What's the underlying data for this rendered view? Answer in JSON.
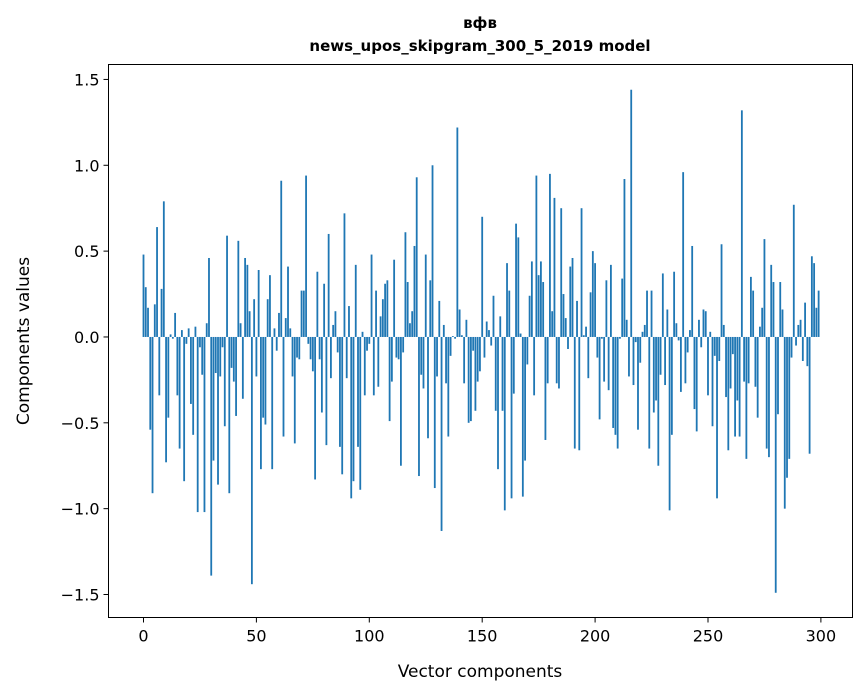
{
  "chart_data": {
    "type": "bar",
    "title": "вфв",
    "subtitle": "news_upos_skipgram_300_5_2019 model",
    "xlabel": "Vector components",
    "ylabel": "Components values",
    "xlim": [
      -15.5,
      314
    ],
    "ylim": [
      -1.634,
      1.587
    ],
    "xticks": [
      0,
      50,
      100,
      150,
      200,
      250,
      300
    ],
    "xtick_labels": [
      "0",
      "50",
      "100",
      "150",
      "200",
      "250",
      "300"
    ],
    "yticks": [
      -1.5,
      -1.0,
      -0.5,
      0.0,
      0.5,
      1.0,
      1.5
    ],
    "ytick_labels": [
      "−1.5",
      "−1.0",
      "−0.5",
      "0.0",
      "0.5",
      "1.0",
      "1.5"
    ],
    "grid": false,
    "bar_color": "#1f77b4",
    "values": [
      0.48,
      0.29,
      0.17,
      -0.54,
      -0.91,
      0.19,
      0.64,
      -0.34,
      0.28,
      0.79,
      -0.73,
      -0.47,
      0.015,
      -0.01,
      0.14,
      -0.34,
      -0.65,
      0.04,
      -0.84,
      -0.04,
      0.05,
      -0.39,
      -0.57,
      0.06,
      -1.02,
      -0.06,
      -0.22,
      -1.02,
      0.08,
      0.46,
      -1.39,
      -0.72,
      -0.21,
      -0.86,
      -0.23,
      -0.06,
      -0.52,
      0.59,
      -0.91,
      -0.18,
      -0.26,
      -0.46,
      0.56,
      0.08,
      -0.36,
      0.46,
      0.42,
      0.15,
      -1.44,
      0.22,
      -0.23,
      0.39,
      -0.77,
      -0.47,
      -0.51,
      0.22,
      0.36,
      -0.77,
      0.05,
      -0.08,
      0.14,
      0.91,
      -0.58,
      0.11,
      0.41,
      0.05,
      -0.23,
      -0.62,
      -0.12,
      -0.13,
      0.27,
      0.27,
      0.94,
      -0.04,
      -0.13,
      -0.2,
      -0.83,
      0.38,
      -0.13,
      -0.44,
      0.31,
      -0.63,
      0.6,
      -0.24,
      0.07,
      0.15,
      -0.09,
      -0.64,
      -0.8,
      0.72,
      -0.24,
      0.18,
      -0.94,
      -0.84,
      0.42,
      -0.64,
      -0.89,
      0.03,
      -0.34,
      -0.08,
      -0.04,
      0.48,
      -0.34,
      0.27,
      -0.29,
      0.12,
      0.22,
      0.31,
      0.33,
      -0.49,
      -0.26,
      0.45,
      -0.12,
      -0.13,
      -0.75,
      -0.09,
      0.61,
      0.32,
      0.08,
      0.15,
      0.53,
      0.93,
      -0.81,
      -0.22,
      -0.3,
      0.48,
      -0.59,
      0.33,
      1.0,
      -0.88,
      -0.23,
      0.21,
      -1.13,
      0.07,
      -0.27,
      -0.58,
      -0.11,
      0.005,
      -0.01,
      1.22,
      0.16,
      0.01,
      -0.27,
      0.1,
      -0.5,
      -0.49,
      -0.08,
      -0.43,
      -0.26,
      -0.2,
      0.7,
      -0.12,
      0.09,
      0.04,
      -0.05,
      0.24,
      -0.43,
      -0.77,
      0.12,
      -0.43,
      -1.01,
      0.43,
      0.27,
      -0.94,
      -0.33,
      0.66,
      0.58,
      0.02,
      -0.93,
      -0.72,
      -0.16,
      0.24,
      0.44,
      -0.34,
      0.94,
      0.36,
      0.44,
      0.32,
      -0.6,
      -0.27,
      0.95,
      0.15,
      0.81,
      -0.27,
      -0.3,
      0.75,
      0.25,
      0.11,
      -0.07,
      0.41,
      0.46,
      -0.65,
      0.21,
      -0.66,
      0.75,
      0.01,
      0.06,
      -0.24,
      0.26,
      0.5,
      0.43,
      -0.12,
      -0.48,
      -0.01,
      -0.26,
      0.33,
      -0.31,
      0.42,
      -0.53,
      -0.57,
      -0.65,
      -0.01,
      0.34,
      0.92,
      0.1,
      -0.23,
      1.44,
      -0.28,
      -0.03,
      -0.54,
      -0.15,
      0.03,
      0.07,
      0.27,
      -0.65,
      0.27,
      -0.44,
      -0.37,
      -0.75,
      -0.22,
      0.37,
      -0.28,
      0.16,
      -1.01,
      -0.57,
      0.38,
      0.08,
      -0.02,
      -0.32,
      0.96,
      -0.27,
      -0.09,
      0.04,
      0.53,
      -0.42,
      -0.55,
      0.1,
      -0.06,
      0.16,
      0.15,
      -0.34,
      0.03,
      -0.52,
      -0.11,
      -0.94,
      -0.14,
      0.54,
      0.07,
      -0.35,
      -0.66,
      -0.3,
      -0.1,
      -0.58,
      -0.37,
      -0.58,
      1.32,
      -0.26,
      -0.71,
      -0.27,
      0.35,
      0.27,
      -0.29,
      -0.47,
      0.06,
      0.17,
      0.57,
      -0.65,
      -0.7,
      0.42,
      0.32,
      -1.49,
      -0.45,
      0.32,
      0.16,
      -1.0,
      -0.82,
      -0.71,
      -0.12,
      0.77,
      -0.05,
      0.07,
      0.1,
      -0.14,
      0.2,
      -0.17,
      -0.68,
      0.47,
      0.43,
      0.17,
      0.27
    ]
  }
}
